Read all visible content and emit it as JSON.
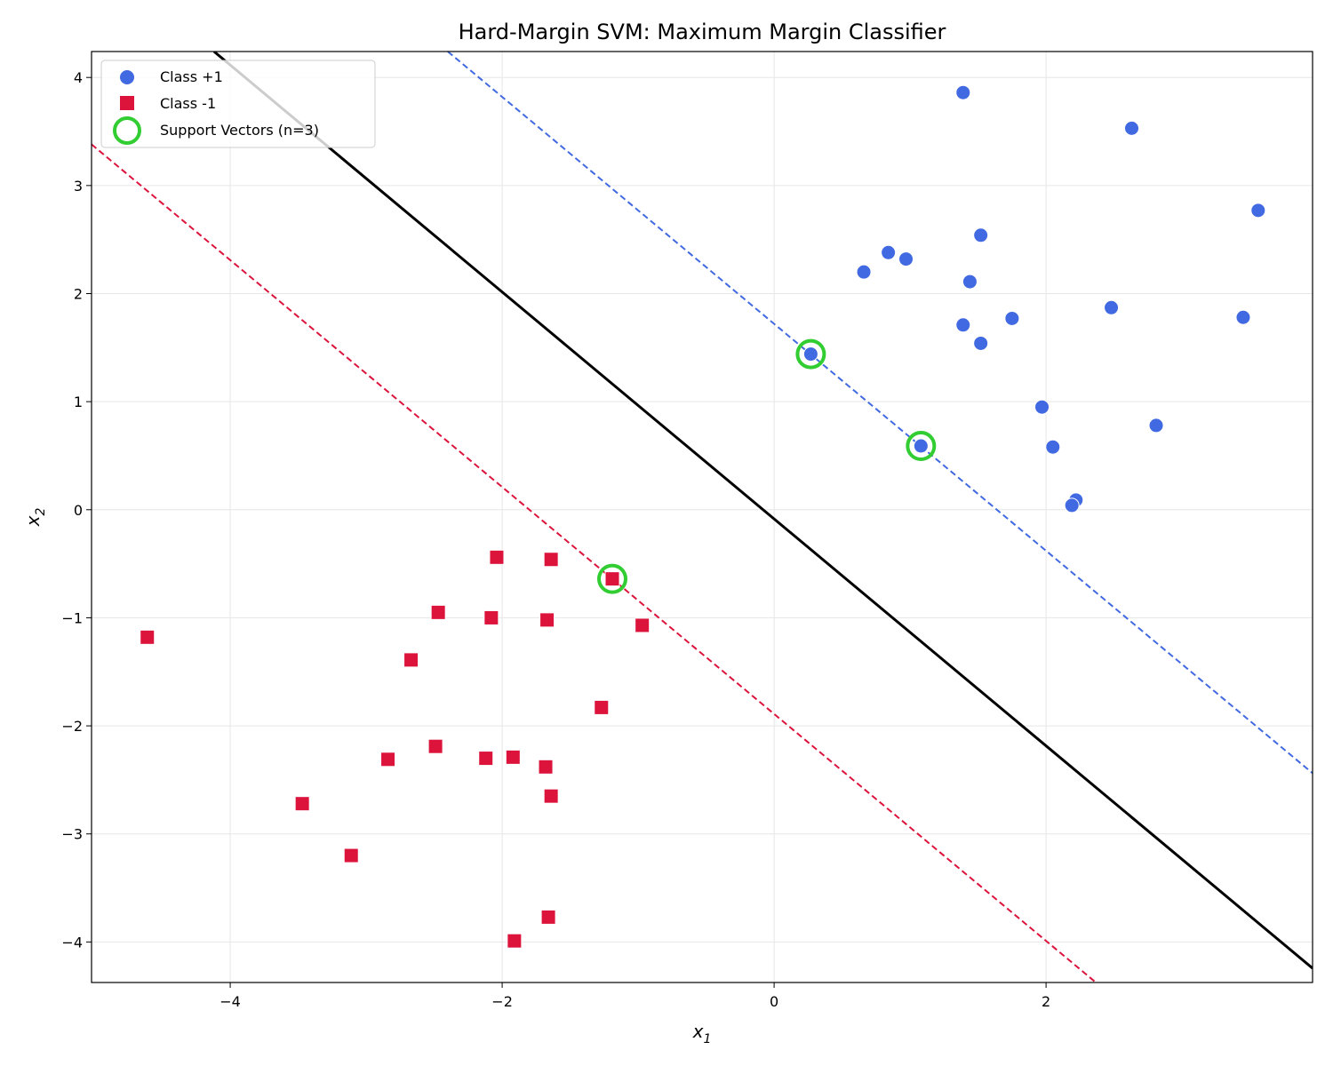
{
  "chart_data": {
    "type": "scatter",
    "title": "Hard-Margin SVM: Maximum Margin Classifier",
    "xlabel": "x",
    "xlabel_sub": "1",
    "ylabel": "x",
    "ylabel_sub": "2",
    "xlim": [
      -5.02,
      3.96
    ],
    "ylim": [
      -4.375,
      4.24
    ],
    "xticks": [
      -4,
      -2,
      0,
      2
    ],
    "yticks": [
      -4,
      -3,
      -2,
      -1,
      0,
      1,
      2,
      3,
      4
    ],
    "xtick_labels": [
      "−4",
      "−2",
      "0",
      "2"
    ],
    "ytick_labels": [
      "−4",
      "−3",
      "−2",
      "−1",
      "0",
      "1",
      "2",
      "3",
      "4"
    ],
    "grid": true,
    "legend_position": "top-left",
    "series": [
      {
        "name": "Class +1",
        "marker": "circle",
        "color": "#4169e1",
        "points": [
          [
            1.39,
            3.86
          ],
          [
            2.63,
            3.53
          ],
          [
            3.56,
            2.77
          ],
          [
            1.52,
            2.54
          ],
          [
            0.84,
            2.38
          ],
          [
            0.97,
            2.32
          ],
          [
            0.66,
            2.2
          ],
          [
            1.44,
            2.11
          ],
          [
            2.48,
            1.87
          ],
          [
            1.75,
            1.77
          ],
          [
            3.45,
            1.78
          ],
          [
            1.39,
            1.71
          ],
          [
            1.52,
            1.54
          ],
          [
            0.27,
            1.44
          ],
          [
            1.97,
            0.95
          ],
          [
            1.08,
            0.59
          ],
          [
            2.81,
            0.78
          ],
          [
            2.05,
            0.58
          ],
          [
            2.22,
            0.09
          ],
          [
            2.19,
            0.04
          ]
        ]
      },
      {
        "name": "Class -1",
        "marker": "square",
        "color": "#dc143c",
        "points": [
          [
            -4.61,
            -1.18
          ],
          [
            -2.04,
            -0.44
          ],
          [
            -1.64,
            -0.46
          ],
          [
            -1.19,
            -0.64
          ],
          [
            -2.47,
            -0.95
          ],
          [
            -2.08,
            -1.0
          ],
          [
            -1.67,
            -1.02
          ],
          [
            -0.97,
            -1.07
          ],
          [
            -2.67,
            -1.39
          ],
          [
            -1.27,
            -1.83
          ],
          [
            -2.49,
            -2.19
          ],
          [
            -2.84,
            -2.31
          ],
          [
            -2.12,
            -2.3
          ],
          [
            -1.92,
            -2.29
          ],
          [
            -1.68,
            -2.38
          ],
          [
            -1.64,
            -2.65
          ],
          [
            -3.47,
            -2.72
          ],
          [
            -3.11,
            -3.2
          ],
          [
            -1.66,
            -3.77
          ],
          [
            -1.91,
            -3.99
          ]
        ]
      },
      {
        "name": "Support Vectors (n=3)",
        "marker": "ring",
        "color": "#32cd32",
        "points": [
          [
            0.27,
            1.44
          ],
          [
            1.08,
            0.59
          ],
          [
            -1.19,
            -0.64
          ]
        ]
      }
    ],
    "lines": [
      {
        "role": "decision-boundary",
        "slope": -1.05,
        "intercept": -0.085,
        "color": "#000000",
        "style": "solid"
      },
      {
        "role": "positive-margin",
        "slope": -1.05,
        "intercept": 1.72,
        "color": "#4169e1",
        "style": "dashed"
      },
      {
        "role": "negative-margin",
        "slope": -1.05,
        "intercept": -1.89,
        "color": "#dc143c",
        "style": "dashed"
      }
    ]
  }
}
